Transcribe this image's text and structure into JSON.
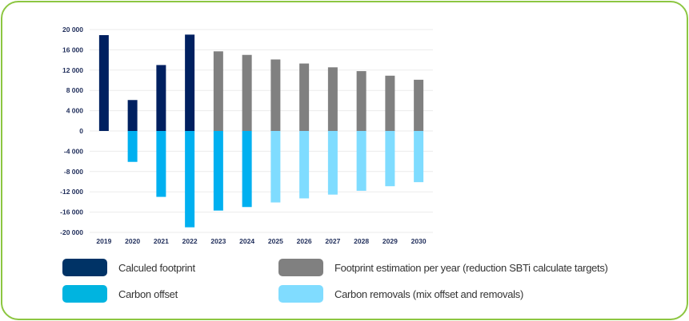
{
  "chart_data": {
    "type": "bar",
    "stacked": true,
    "categories": [
      "2019",
      "2020",
      "2021",
      "2022",
      "2023",
      "2024",
      "2025",
      "2026",
      "2027",
      "2028",
      "2029",
      "2030"
    ],
    "series": [
      {
        "name": "Calculed footprint",
        "color": "#002060",
        "values": [
          18900,
          6100,
          13000,
          19000,
          null,
          null,
          null,
          null,
          null,
          null,
          null,
          null
        ]
      },
      {
        "name": "Footprint estimation per year (reduction SBTi calculate targets)",
        "color": "#808080",
        "values": [
          null,
          null,
          null,
          null,
          15700,
          15000,
          14100,
          13300,
          12550,
          11800,
          10900,
          10100
        ]
      },
      {
        "name": "Carbon offset",
        "color": "#00b0f0",
        "values": [
          null,
          -6100,
          -13000,
          -19000,
          -15700,
          -15000,
          null,
          null,
          null,
          null,
          null,
          null
        ]
      },
      {
        "name": "Carbon removals (mix offset and removals)",
        "color": "#7fdcff",
        "values": [
          null,
          null,
          null,
          null,
          null,
          null,
          -14100,
          -13300,
          -12550,
          -11800,
          -10900,
          -10100
        ]
      }
    ],
    "yticks": [
      "20 000",
      "16 000",
      "12 000",
      "8 000",
      "4 000",
      "0",
      "-4 000",
      "-8 000",
      "-12 000",
      "-16 000",
      "-20 000"
    ],
    "ylim": [
      -20000,
      20000
    ],
    "grid": true,
    "legend_position": "bottom",
    "legend_colors": {
      "Calculed footprint": "#003366",
      "Carbon offset": "#00b4e0",
      "Footprint estimation per year (reduction SBTi calculate targets)": "#808080",
      "Carbon removals (mix offset and removals)": "#80dcff"
    },
    "border_color": "#8cc641"
  }
}
